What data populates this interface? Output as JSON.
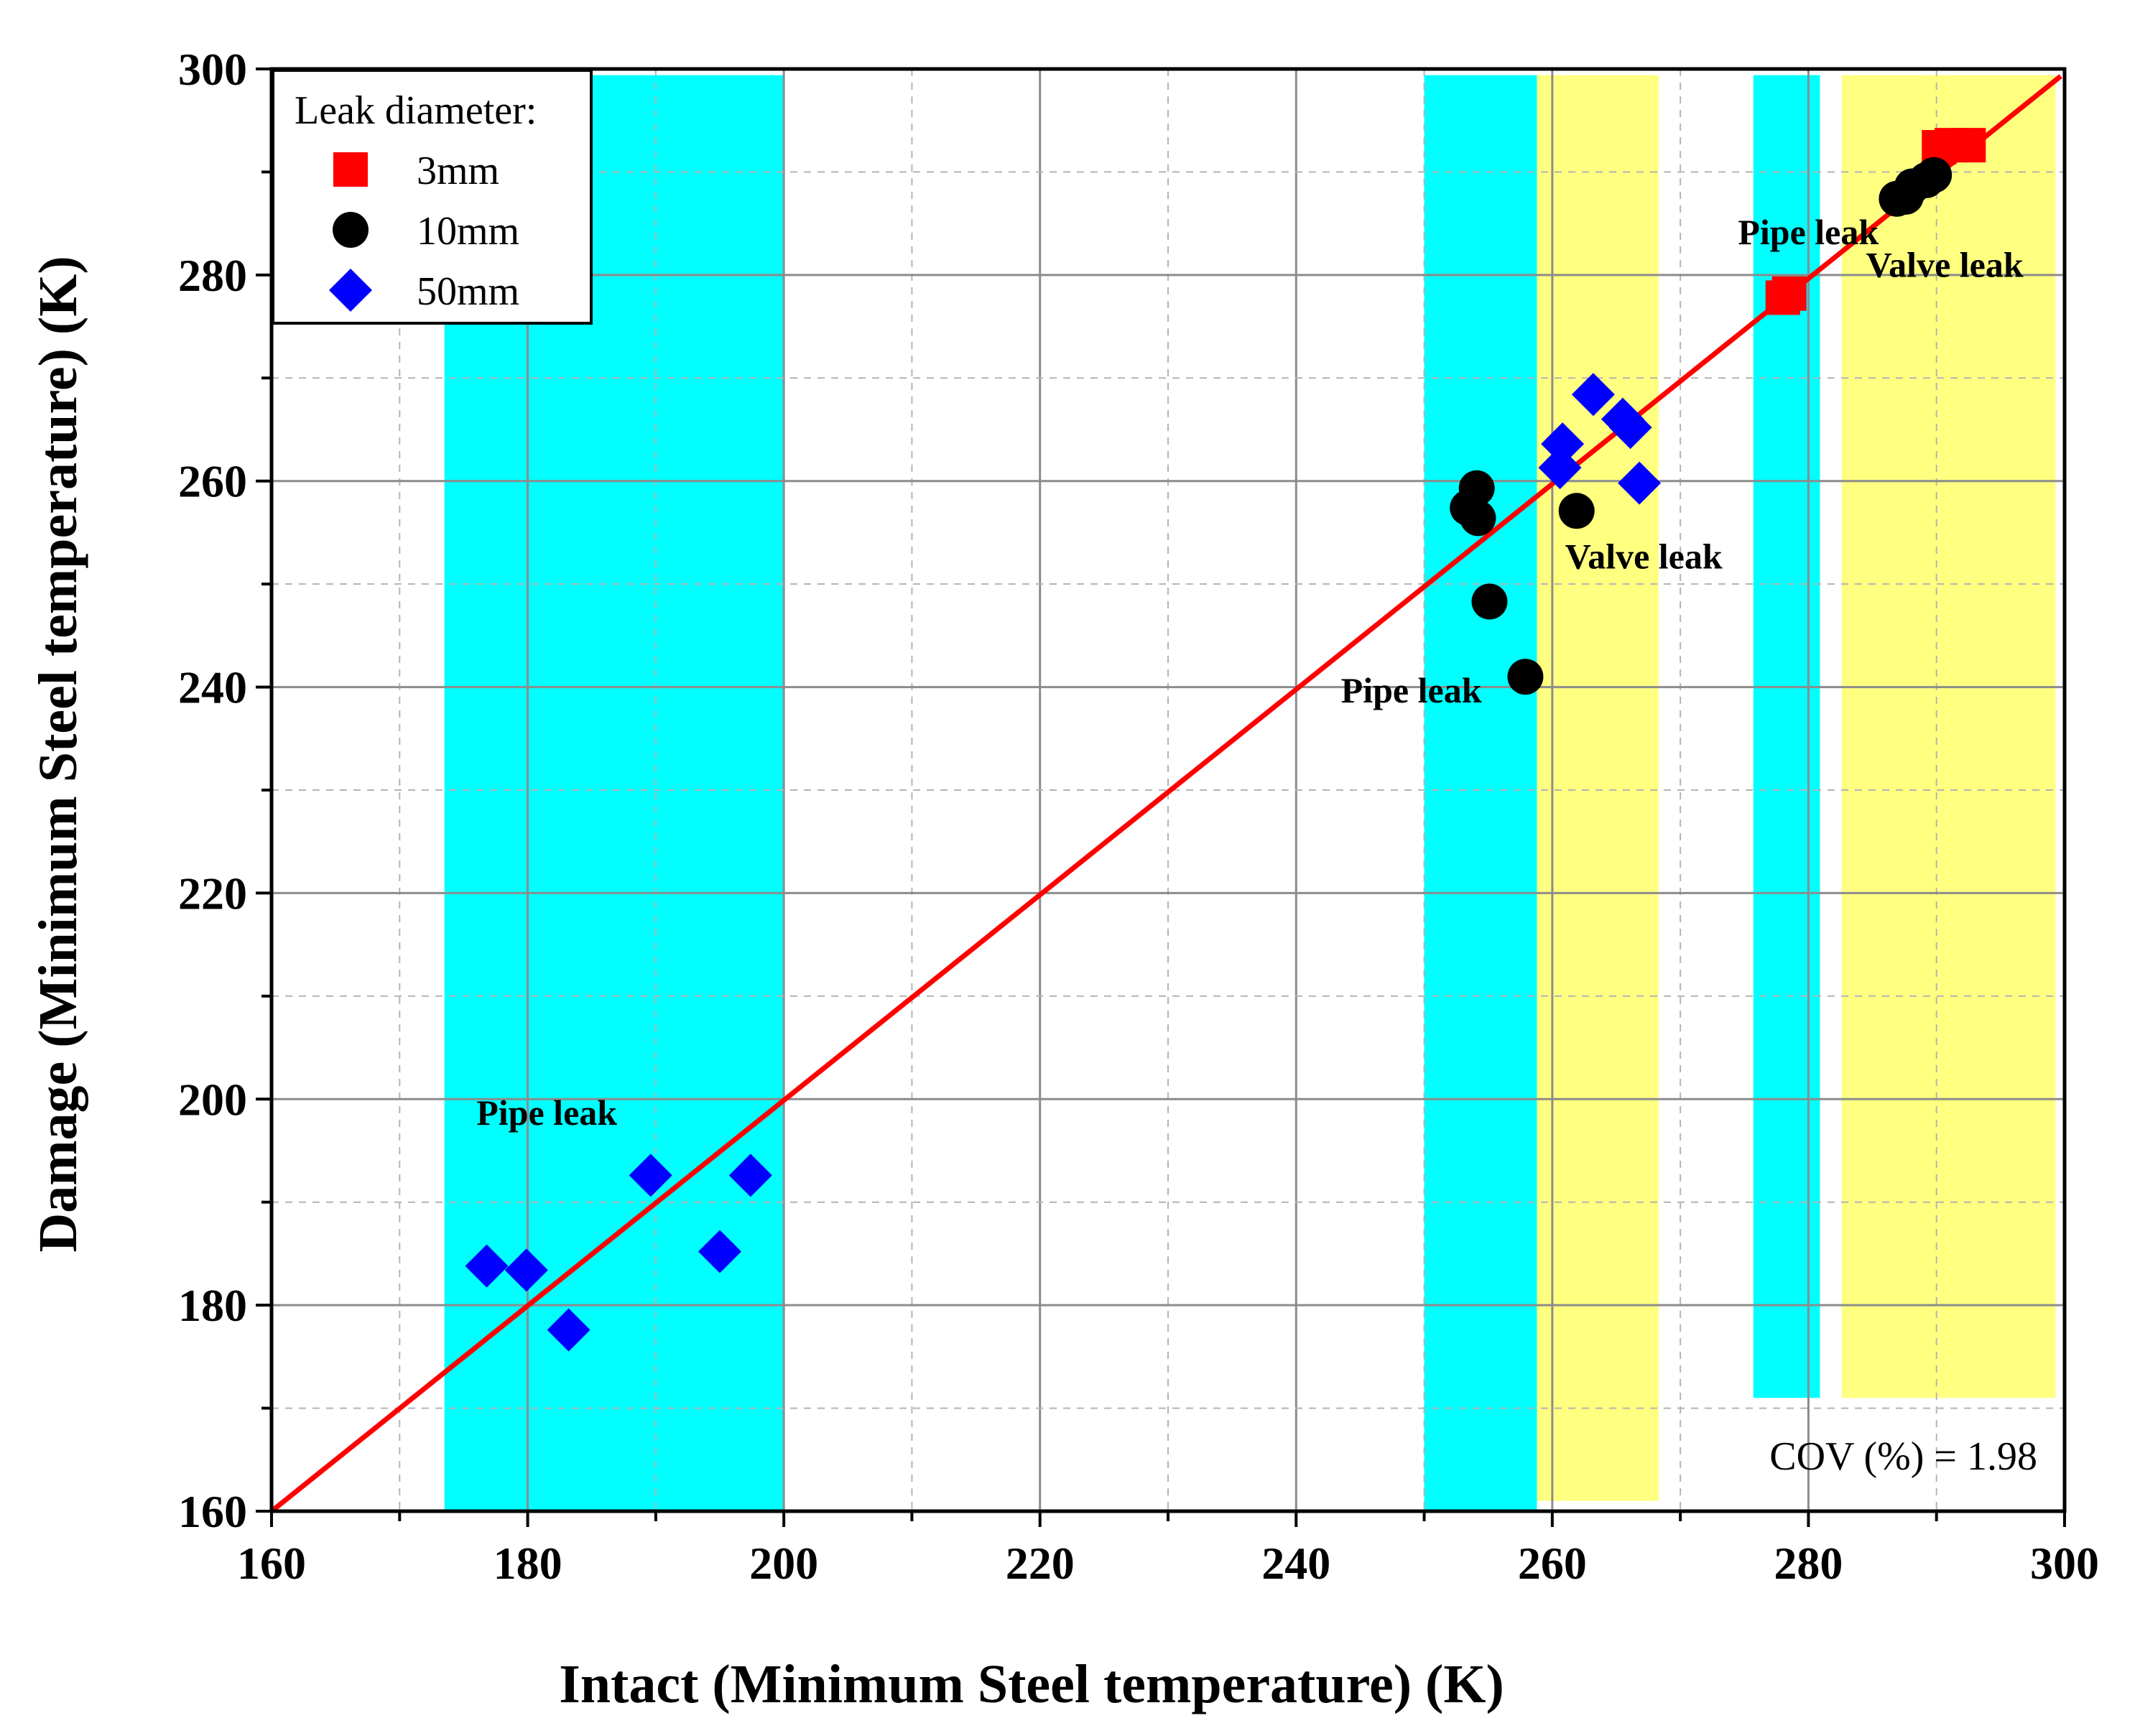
{
  "chart_data": {
    "type": "scatter",
    "title": "",
    "xlabel": "Intact (Minimum Steel temperature) (K)",
    "ylabel": "Damage (Minimum Steel temperature) (K)",
    "xlim": [
      160,
      300
    ],
    "ylim": [
      160,
      300
    ],
    "x_ticks": [
      160,
      180,
      200,
      220,
      240,
      260,
      280,
      300
    ],
    "y_ticks": [
      160,
      180,
      200,
      220,
      240,
      260,
      280,
      300
    ],
    "grid": true,
    "legend": {
      "title": "Leak diameter:",
      "position": "top-left"
    },
    "series": [
      {
        "name": "3mm",
        "marker": "square",
        "color": "#ff0000",
        "points": [
          [
            278.0,
            277.8
          ],
          [
            278.5,
            278.2
          ],
          [
            290.2,
            292.4
          ],
          [
            291.2,
            292.6
          ],
          [
            292.5,
            292.6
          ]
        ]
      },
      {
        "name": "10mm",
        "marker": "circle",
        "color": "#000000",
        "points": [
          [
            253.4,
            257.4
          ],
          [
            254.1,
            259.3
          ],
          [
            254.2,
            256.4
          ],
          [
            255.1,
            248.3
          ],
          [
            257.9,
            241.0
          ],
          [
            261.9,
            257.1
          ],
          [
            286.9,
            287.4
          ],
          [
            287.6,
            287.6
          ],
          [
            288.1,
            288.6
          ],
          [
            289.2,
            289.2
          ],
          [
            289.8,
            289.7
          ]
        ]
      },
      {
        "name": "50mm",
        "marker": "diamond",
        "color": "#0000ff",
        "points": [
          [
            176.8,
            183.8
          ],
          [
            179.9,
            183.4
          ],
          [
            183.2,
            177.6
          ],
          [
            189.6,
            192.6
          ],
          [
            195.0,
            185.2
          ],
          [
            197.4,
            192.6
          ],
          [
            260.6,
            261.3
          ],
          [
            260.8,
            263.6
          ],
          [
            263.2,
            268.4
          ],
          [
            265.5,
            266.0
          ],
          [
            266.1,
            265.2
          ],
          [
            266.8,
            259.8
          ]
        ]
      }
    ],
    "reference_line": {
      "label": "y = x",
      "color": "#ff0000",
      "from": [
        160,
        160
      ],
      "to": [
        299.7,
        299.3
      ]
    },
    "shaded_regions": [
      {
        "x0": 173.5,
        "x1": 200.0,
        "y0": 160,
        "y1": 299.4,
        "color": "#00ffff"
      },
      {
        "x0": 250.0,
        "x1": 258.8,
        "y0": 160,
        "y1": 299.4,
        "color": "#00ffff"
      },
      {
        "x0": 258.8,
        "x1": 268.3,
        "y0": 161.0,
        "y1": 299.4,
        "color": "#ffff80"
      },
      {
        "x0": 275.7,
        "x1": 280.9,
        "y0": 171.0,
        "y1": 299.4,
        "color": "#00ffff"
      },
      {
        "x0": 282.6,
        "x1": 299.3,
        "y0": 171.0,
        "y1": 299.4,
        "color": "#ffff80"
      }
    ],
    "annotations": [
      {
        "text": "Pipe leak",
        "x": 176.0,
        "y": 197.5
      },
      {
        "text": "Pipe leak",
        "x": 243.5,
        "y": 238.5
      },
      {
        "text": "Valve leak",
        "x": 261.0,
        "y": 251.5
      },
      {
        "text": "Pipe leak",
        "x": 274.5,
        "y": 283.0
      },
      {
        "text": "Valve leak",
        "x": 284.5,
        "y": 279.8
      }
    ],
    "stat_text": "COV (%) = 1.98"
  }
}
